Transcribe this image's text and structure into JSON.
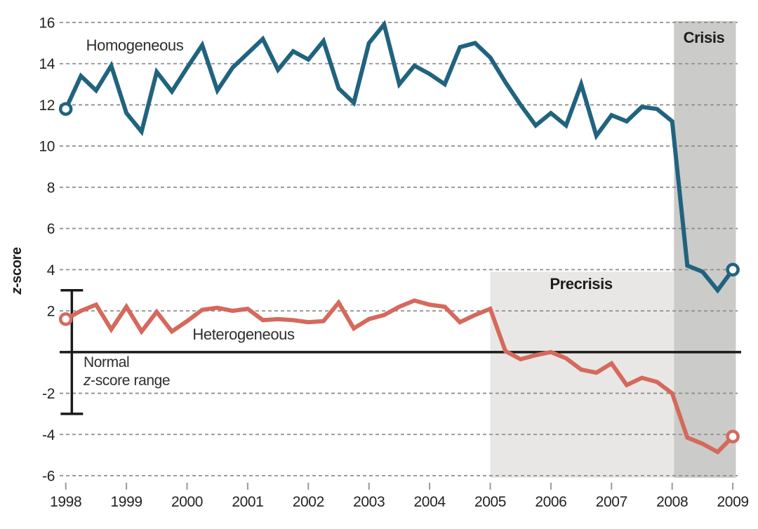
{
  "chart_data": {
    "type": "line",
    "title": "",
    "ylabel": {
      "italic_part": "z",
      "rest": "-score"
    },
    "ylim": [
      -6,
      16
    ],
    "y_grid_values": [
      16,
      14,
      12,
      10,
      8,
      6,
      4,
      2,
      -2,
      -4,
      -6
    ],
    "zero_axis": true,
    "grid": "dashed horizontal",
    "x_tick_labels": [
      "1998",
      "1999",
      "2000",
      "2001",
      "2002",
      "2003",
      "2004",
      "2005",
      "2006",
      "2007",
      "2008",
      "2009"
    ],
    "x_start_year": 1998,
    "x_step_years": 0.25,
    "endpoint_markers": "open circles at first and last point of each series",
    "series": [
      {
        "name": "Homogeneous",
        "color": "#20637f",
        "values": [
          11.8,
          13.4,
          12.7,
          13.9,
          11.6,
          10.7,
          13.6,
          12.65,
          13.8,
          14.9,
          12.7,
          13.8,
          14.5,
          15.2,
          13.7,
          14.6,
          14.2,
          15.1,
          12.8,
          12.1,
          15.0,
          15.9,
          13.0,
          13.9,
          13.5,
          13.0,
          14.8,
          15.0,
          14.3,
          13.1,
          12.0,
          11.0,
          11.6,
          11.0,
          13.0,
          10.5,
          11.5,
          11.2,
          11.9,
          11.8,
          11.2,
          4.2,
          3.9,
          3.0,
          4.0
        ]
      },
      {
        "name": "Heterogeneous",
        "color": "#d5695c",
        "values": [
          1.6,
          2.0,
          2.3,
          1.1,
          2.2,
          1.0,
          1.95,
          1.0,
          1.5,
          2.05,
          2.15,
          2.0,
          2.1,
          1.55,
          1.6,
          1.55,
          1.45,
          1.5,
          2.4,
          1.15,
          1.6,
          1.8,
          2.2,
          2.5,
          2.3,
          2.2,
          1.45,
          1.8,
          2.1,
          0.05,
          -0.35,
          -0.15,
          0.0,
          -0.3,
          -0.85,
          -1.0,
          -0.55,
          -1.6,
          -1.25,
          -1.45,
          -2.0,
          -4.15,
          -4.45,
          -4.85,
          -4.1
        ]
      }
    ],
    "bands": [
      {
        "label": "Precrisis",
        "x_from": 2005.0,
        "x_to": 2008.03,
        "color": "#e8e7e5",
        "top_z": 3.9
      },
      {
        "label": "Crisis",
        "x_from": 2008.03,
        "x_to": 2009.05,
        "color": "#cbcbca",
        "top_z": null
      }
    ],
    "normal_range": {
      "line1": "Normal",
      "line2_italic": "z",
      "line2_rest": "-score range",
      "from_z": -3,
      "to_z": 3,
      "x_year": 1998.1
    },
    "series_labels": {
      "homogeneous": "Homogeneous",
      "heterogeneous": "Heterogeneous"
    },
    "colors": {
      "gridline": "#8f8f8f",
      "zero_axis": "#1a1a1a",
      "tick": "#9a9a9a",
      "errorbar": "#1a1a1a",
      "background": "#ffffff"
    }
  }
}
